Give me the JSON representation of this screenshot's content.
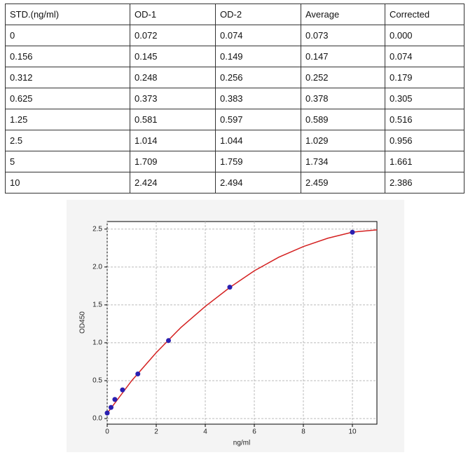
{
  "table": {
    "rows": [
      [
        "STD.(ng/ml)",
        "OD-1",
        "OD-2",
        "Average",
        "Corrected"
      ],
      [
        "0",
        "0.072",
        "0.074",
        "0.073",
        "0.000"
      ],
      [
        "0.156",
        "0.145",
        "0.149",
        "0.147",
        "0.074"
      ],
      [
        "0.312",
        "0.248",
        "0.256",
        "0.252",
        "0.179"
      ],
      [
        "0.625",
        "0.373",
        "0.383",
        "0.378",
        "0.305"
      ],
      [
        "1.25",
        "0.581",
        "0.597",
        "0.589",
        "0.516"
      ],
      [
        "2.5",
        "1.014",
        "1.044",
        "1.029",
        "0.956"
      ],
      [
        "5",
        "1.709",
        "1.759",
        "1.734",
        "1.661"
      ],
      [
        "10",
        "2.424",
        "2.494",
        "2.459",
        "2.386"
      ]
    ]
  },
  "chart_data": {
    "type": "scatter",
    "x_label": "ng/ml",
    "y_label": "OD450",
    "x": [
      0,
      0.156,
      0.312,
      0.625,
      1.25,
      2.5,
      5,
      10
    ],
    "values": [
      0.073,
      0.147,
      0.252,
      0.378,
      0.589,
      1.029,
      1.734,
      2.459
    ],
    "color": "#2a1fb0",
    "fit": {
      "color": "#d42020",
      "x": [
        0,
        1,
        2,
        3,
        4,
        5,
        6,
        7,
        8,
        9,
        10,
        11
      ],
      "values": [
        0.07,
        0.5,
        0.87,
        1.2,
        1.48,
        1.73,
        1.95,
        2.13,
        2.27,
        2.38,
        2.46,
        2.49
      ]
    },
    "xlim": [
      0,
      11
    ],
    "ylim": [
      -0.074,
      2.6
    ],
    "xticks": [
      0,
      2,
      4,
      6,
      8,
      10
    ],
    "yticks": [
      {
        "value": 0,
        "label": "0.0"
      },
      {
        "value": 0.5,
        "label": "0.5"
      },
      {
        "value": 1,
        "label": "1.0"
      },
      {
        "value": 1.5,
        "label": "1.5"
      },
      {
        "value": 2,
        "label": "2.0"
      },
      {
        "value": 2.5,
        "label": "2.5"
      }
    ],
    "grid": true
  }
}
